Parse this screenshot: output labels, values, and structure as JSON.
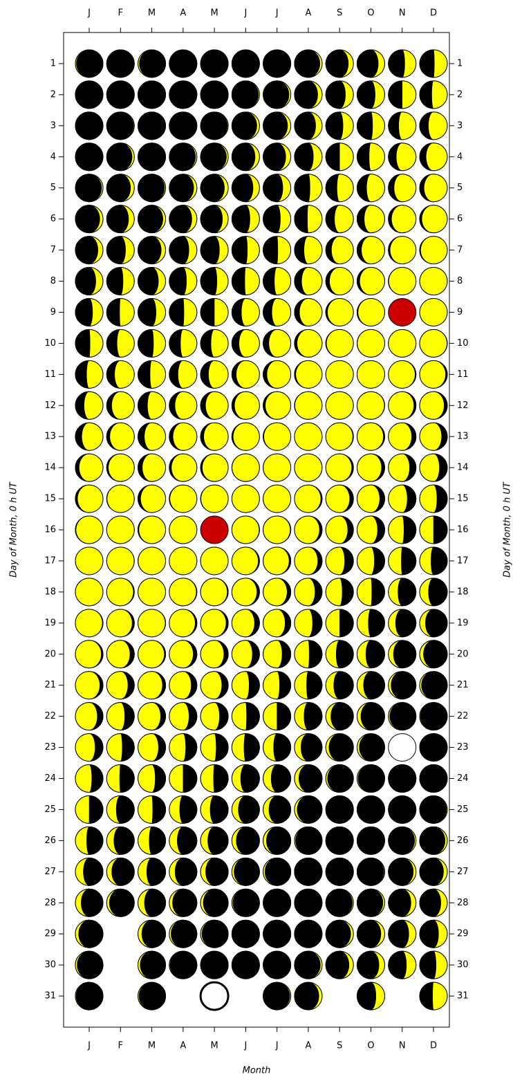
{
  "chart_data": {
    "type": "moon-calendar",
    "categories": [
      "J",
      "F",
      "M",
      "A",
      "M",
      "J",
      "J",
      "A",
      "S",
      "O",
      "N",
      "D"
    ],
    "x_title": "Month",
    "y_title": "Day of Month, 0 h UT",
    "ylim": [
      0,
      32
    ],
    "y_reversed": true,
    "yticks": [
      1,
      2,
      3,
      4,
      5,
      6,
      7,
      8,
      9,
      10,
      11,
      12,
      13,
      14,
      15,
      16,
      17,
      18,
      19,
      20,
      21,
      22,
      23,
      24,
      25,
      26,
      27,
      28,
      29,
      30,
      31
    ],
    "dark_color": "#000000",
    "lit_color": "#ffff00",
    "values": [
      [
        0.94,
        0.97,
        0.01,
        0.04,
        0.07,
        0.11,
        0.14,
        0.17,
        0.21,
        0.24,
        0.28,
        0.31,
        0.34,
        0.38,
        0.41,
        0.45,
        0.48,
        0.51,
        0.55,
        0.58,
        0.61,
        0.65,
        0.68,
        0.72,
        0.75,
        0.78,
        0.82,
        0.85,
        0.89,
        0.92,
        0.95
      ],
      [
        0.99,
        0.02,
        0.05,
        0.09,
        0.12,
        0.15,
        0.19,
        0.22,
        0.26,
        0.29,
        0.32,
        0.36,
        0.39,
        0.42,
        0.46,
        0.49,
        0.53,
        0.56,
        0.59,
        0.63,
        0.66,
        0.7,
        0.73,
        0.76,
        0.8,
        0.83,
        0.86,
        0.9
      ],
      [
        0.93,
        0.97,
        0.99,
        0.03,
        0.06,
        0.1,
        0.13,
        0.17,
        0.2,
        0.23,
        0.27,
        0.3,
        0.34,
        0.37,
        0.4,
        0.44,
        0.47,
        0.5,
        0.54,
        0.57,
        0.61,
        0.64,
        0.67,
        0.71,
        0.74,
        0.78,
        0.81,
        0.84,
        0.88,
        0.91,
        0.94
      ],
      [
        0.98,
        0.01,
        0.04,
        0.07,
        0.11,
        0.14,
        0.18,
        0.21,
        0.24,
        0.28,
        0.31,
        0.35,
        0.38,
        0.41,
        0.45,
        0.48,
        0.51,
        0.55,
        0.58,
        0.62,
        0.65,
        0.68,
        0.72,
        0.75,
        0.79,
        0.82,
        0.85,
        0.89,
        0.92,
        0.95
      ],
      [
        0.99,
        0.02,
        0.05,
        0.08,
        0.12,
        0.15,
        0.19,
        0.22,
        0.25,
        0.29,
        0.32,
        0.36,
        0.39,
        0.42,
        0.46,
        0.49,
        0.52,
        0.56,
        0.59,
        0.63,
        0.66,
        0.69,
        0.73,
        0.76,
        0.8,
        0.83,
        0.86,
        0.9,
        0.93,
        0.96,
        0.99
      ],
      [
        0.03,
        0.06,
        0.1,
        0.13,
        0.16,
        0.2,
        0.23,
        0.26,
        0.3,
        0.33,
        0.37,
        0.4,
        0.43,
        0.47,
        0.5,
        0.54,
        0.57,
        0.6,
        0.64,
        0.67,
        0.71,
        0.74,
        0.77,
        0.81,
        0.84,
        0.87,
        0.91,
        0.94,
        0.98,
        0.01
      ],
      [
        0.04,
        0.08,
        0.11,
        0.14,
        0.18,
        0.21,
        0.24,
        0.28,
        0.31,
        0.35,
        0.38,
        0.41,
        0.45,
        0.48,
        0.52,
        0.55,
        0.58,
        0.62,
        0.65,
        0.69,
        0.72,
        0.75,
        0.79,
        0.82,
        0.85,
        0.89,
        0.92,
        0.96,
        0.99,
        0.02,
        0.06
      ],
      [
        0.09,
        0.13,
        0.16,
        0.19,
        0.23,
        0.26,
        0.3,
        0.33,
        0.36,
        0.4,
        0.43,
        0.46,
        0.5,
        0.53,
        0.57,
        0.6,
        0.63,
        0.67,
        0.7,
        0.74,
        0.77,
        0.8,
        0.84,
        0.87,
        0.9,
        0.94,
        0.97,
        0.01,
        0.04,
        0.08,
        0.11
      ],
      [
        0.14,
        0.18,
        0.21,
        0.25,
        0.28,
        0.31,
        0.35,
        0.38,
        0.42,
        0.45,
        0.48,
        0.52,
        0.55,
        0.58,
        0.62,
        0.65,
        0.69,
        0.72,
        0.75,
        0.79,
        0.82,
        0.86,
        0.89,
        0.92,
        0.96,
        0.99,
        0.03,
        0.06,
        0.1,
        0.13
      ],
      [
        0.16,
        0.2,
        0.23,
        0.27,
        0.3,
        0.33,
        0.37,
        0.4,
        0.44,
        0.47,
        0.5,
        0.54,
        0.57,
        0.61,
        0.64,
        0.67,
        0.71,
        0.74,
        0.78,
        0.81,
        0.84,
        0.88,
        0.91,
        0.94,
        0.98,
        0.02,
        0.05,
        0.08,
        0.12,
        0.15,
        0.19
      ],
      [
        0.22,
        0.25,
        0.29,
        0.32,
        0.35,
        0.39,
        0.42,
        0.46,
        0.49,
        0.52,
        0.56,
        0.59,
        0.63,
        0.66,
        0.69,
        0.73,
        0.76,
        0.8,
        0.83,
        0.86,
        0.9,
        0.93,
        0.96,
        0.0,
        0.04,
        0.07,
        0.1,
        0.14,
        0.17,
        0.2
      ],
      [
        0.24,
        0.27,
        0.31,
        0.34,
        0.37,
        0.41,
        0.44,
        0.48,
        0.51,
        0.54,
        0.58,
        0.61,
        0.65,
        0.68,
        0.71,
        0.75,
        0.78,
        0.81,
        0.85,
        0.88,
        0.92,
        0.95,
        0.98,
        0.02,
        0.05,
        0.09,
        0.12,
        0.16,
        0.19,
        0.22,
        0.26
      ]
    ],
    "highlights": [
      {
        "month_index": 4,
        "day": 16,
        "fill": "#cc0000",
        "stroke_width": 1
      },
      {
        "month_index": 10,
        "day": 9,
        "fill": "#cc0000",
        "stroke_width": 1
      },
      {
        "month_index": 10,
        "day": 23,
        "fill": "#ffffff",
        "stroke_width": 1
      },
      {
        "month_index": 4,
        "day": 31,
        "fill": "#ffffff",
        "stroke_width": 3
      }
    ]
  }
}
